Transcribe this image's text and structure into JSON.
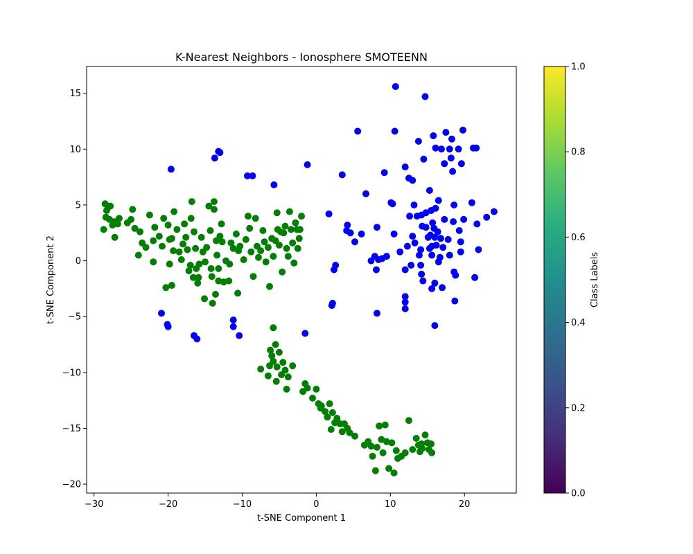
{
  "chart_data": {
    "type": "scatter",
    "title": "K-Nearest Neighbors - Ionosphere SMOTEENN",
    "xlabel": "t-SNE Component 1",
    "ylabel": "t-SNE Component 2",
    "xlim": [
      -31,
      27
    ],
    "ylim": [
      -20.8,
      17.4
    ],
    "xticks": [
      -30,
      -20,
      -10,
      0,
      10,
      20
    ],
    "xtick_labels": [
      "−30",
      "−20",
      "−10",
      "0",
      "10",
      "20"
    ],
    "yticks": [
      -20,
      -15,
      -10,
      -5,
      0,
      5,
      10,
      15
    ],
    "ytick_labels": [
      "−20",
      "−15",
      "−10",
      "−5",
      "0",
      "5",
      "10",
      "15"
    ],
    "grid": false,
    "colorbar": {
      "label": "Class Labels",
      "colormap": "viridis",
      "range": [
        0.0,
        1.0
      ],
      "ticks": [
        0.0,
        0.2,
        0.4,
        0.6,
        0.8,
        1.0
      ],
      "tick_labels": [
        "0.0",
        "0.2",
        "0.4",
        "0.6",
        "0.8",
        "1.0"
      ]
    },
    "series": [
      {
        "color": "#008000",
        "points": [
          [
            -28.5,
            5.1
          ],
          [
            -28.1,
            4.8
          ],
          [
            -27.8,
            4.9
          ],
          [
            -28.3,
            4.5
          ],
          [
            -28.4,
            3.9
          ],
          [
            -27.9,
            3.7
          ],
          [
            -27.5,
            3.2
          ],
          [
            -27.2,
            3.5
          ],
          [
            -26.8,
            3.3
          ],
          [
            -26.6,
            3.8
          ],
          [
            -27.2,
            2.1
          ],
          [
            -28.7,
            2.8
          ],
          [
            -25.5,
            3.4
          ],
          [
            -25.0,
            3.7
          ],
          [
            -24.8,
            4.6
          ],
          [
            -24.5,
            2.9
          ],
          [
            -23.8,
            2.6
          ],
          [
            -23.5,
            1.6
          ],
          [
            -24.0,
            0.5
          ],
          [
            -23.0,
            1.2
          ],
          [
            -22.5,
            4.1
          ],
          [
            -22.0,
            1.8
          ],
          [
            -22.0,
            -0.1
          ],
          [
            -21.8,
            3.0
          ],
          [
            -21.2,
            2.2
          ],
          [
            -20.8,
            1.3
          ],
          [
            -20.6,
            3.8
          ],
          [
            -20.3,
            -2.4
          ],
          [
            -20.0,
            3.2
          ],
          [
            -19.8,
            1.9
          ],
          [
            -19.5,
            2.0
          ],
          [
            -19.3,
            0.9
          ],
          [
            -19.5,
            -2.2
          ],
          [
            -19.8,
            -0.3
          ],
          [
            -19.2,
            4.4
          ],
          [
            -18.8,
            2.8
          ],
          [
            -18.5,
            0.8
          ],
          [
            -18.2,
            0.1
          ],
          [
            -18.0,
            1.5
          ],
          [
            -17.8,
            3.3
          ],
          [
            -17.6,
            2.1
          ],
          [
            -17.4,
            1.0
          ],
          [
            -17.2,
            -0.9
          ],
          [
            -17.0,
            -0.4
          ],
          [
            -16.8,
            5.3
          ],
          [
            -16.9,
            3.8
          ],
          [
            -16.6,
            -1.5
          ],
          [
            -16.5,
            2.6
          ],
          [
            -16.3,
            1.1
          ],
          [
            -16.2,
            -0.7
          ],
          [
            -16.0,
            -2.0
          ],
          [
            -15.8,
            -0.3
          ],
          [
            -15.5,
            2.1
          ],
          [
            -15.3,
            0.8
          ],
          [
            -15.1,
            -3.4
          ],
          [
            -15.0,
            -0.1
          ],
          [
            -14.8,
            1.2
          ],
          [
            -14.5,
            4.9
          ],
          [
            -14.3,
            2.7
          ],
          [
            -14.2,
            -0.7
          ],
          [
            -14.1,
            -1.4
          ],
          [
            -14.0,
            -3.8
          ],
          [
            -13.8,
            5.3
          ],
          [
            -13.8,
            4.6
          ],
          [
            -13.6,
            -3.0
          ],
          [
            -13.5,
            1.8
          ],
          [
            -13.4,
            0.5
          ],
          [
            -13.2,
            -0.7
          ],
          [
            -13.0,
            2.2
          ],
          [
            -12.8,
            3.3
          ],
          [
            -12.7,
            1.7
          ],
          [
            -12.5,
            -1.9
          ],
          [
            -12.2,
            0.0
          ],
          [
            -11.8,
            -1.8
          ],
          [
            -11.7,
            -0.3
          ],
          [
            -11.5,
            1.6
          ],
          [
            -11.2,
            1.1
          ],
          [
            -10.8,
            2.4
          ],
          [
            -10.5,
            0.9
          ],
          [
            -10.3,
            1.3
          ],
          [
            -10.6,
            -2.9
          ],
          [
            -9.8,
            0.1
          ],
          [
            -9.5,
            1.9
          ],
          [
            -9.2,
            4.0
          ],
          [
            -9.0,
            2.9
          ],
          [
            -8.8,
            0.8
          ],
          [
            -8.5,
            -1.4
          ],
          [
            -8.2,
            3.8
          ],
          [
            -8.0,
            1.3
          ],
          [
            -7.8,
            0.3
          ],
          [
            -7.5,
            0.9
          ],
          [
            -7.2,
            2.7
          ],
          [
            -7.0,
            1.7
          ],
          [
            -6.8,
            -0.1
          ],
          [
            -6.5,
            1.2
          ],
          [
            -6.3,
            -2.3
          ],
          [
            -6.0,
            2.0
          ],
          [
            -5.8,
            0.4
          ],
          [
            -5.5,
            1.8
          ],
          [
            -5.3,
            4.3
          ],
          [
            -5.2,
            2.8
          ],
          [
            -5.0,
            1.4
          ],
          [
            -4.8,
            2.6
          ],
          [
            -4.6,
            -1.0
          ],
          [
            -4.4,
            2.5
          ],
          [
            -4.2,
            3.1
          ],
          [
            -4.0,
            1.1
          ],
          [
            -3.8,
            0.4
          ],
          [
            -3.6,
            4.4
          ],
          [
            -3.4,
            2.8
          ],
          [
            -3.2,
            1.6
          ],
          [
            -3.0,
            -0.2
          ],
          [
            -2.8,
            3.4
          ],
          [
            -2.6,
            2.8
          ],
          [
            -2.5,
            1.1
          ],
          [
            -2.3,
            2.0
          ],
          [
            -2.2,
            2.8
          ],
          [
            -2.0,
            4.0
          ],
          [
            -13.2,
            -1.8
          ],
          [
            -15.9,
            -1.5
          ],
          [
            -6.2,
            -8.0
          ],
          [
            -6.0,
            -8.5
          ],
          [
            -5.8,
            -6.0
          ],
          [
            -5.5,
            -7.5
          ],
          [
            -5.8,
            -9.0
          ],
          [
            -5.3,
            -9.5
          ],
          [
            -5.0,
            -8.2
          ],
          [
            -4.7,
            -10.2
          ],
          [
            -4.5,
            -9.1
          ],
          [
            -4.2,
            -9.8
          ],
          [
            -4.0,
            -11.5
          ],
          [
            -3.8,
            -10.4
          ],
          [
            -3.2,
            -9.4
          ],
          [
            -6.5,
            -10.3
          ],
          [
            -7.5,
            -9.7
          ],
          [
            -5.4,
            -10.8
          ],
          [
            -6.3,
            -9.4
          ],
          [
            -1.5,
            -11.0
          ],
          [
            -1.2,
            -11.4
          ],
          [
            -1.8,
            -11.7
          ],
          [
            -0.5,
            -12.3
          ],
          [
            0.0,
            -11.5
          ],
          [
            0.3,
            -12.8
          ],
          [
            0.7,
            -13.0
          ],
          [
            1.2,
            -13.5
          ],
          [
            1.5,
            -14.0
          ],
          [
            1.8,
            -12.8
          ],
          [
            2.2,
            -13.6
          ],
          [
            2.5,
            -14.5
          ],
          [
            2.8,
            -14.1
          ],
          [
            3.2,
            -14.6
          ],
          [
            3.5,
            -15.3
          ],
          [
            3.8,
            -14.6
          ],
          [
            4.2,
            -15.0
          ],
          [
            4.5,
            -15.4
          ],
          [
            5.2,
            -15.7
          ],
          [
            6.5,
            -16.5
          ],
          [
            7.0,
            -16.2
          ],
          [
            7.4,
            -16.6
          ],
          [
            7.6,
            -17.5
          ],
          [
            8.0,
            -18.8
          ],
          [
            8.2,
            -16.7
          ],
          [
            8.5,
            -14.8
          ],
          [
            8.8,
            -16.0
          ],
          [
            9.0,
            -17.2
          ],
          [
            9.3,
            -14.7
          ],
          [
            9.5,
            -16.2
          ],
          [
            9.8,
            -18.6
          ],
          [
            10.2,
            -16.3
          ],
          [
            10.5,
            -19.0
          ],
          [
            10.8,
            -17.0
          ],
          [
            11.0,
            -17.7
          ],
          [
            11.5,
            -17.5
          ],
          [
            12.0,
            -17.2
          ],
          [
            12.5,
            -14.3
          ],
          [
            13.0,
            -16.9
          ],
          [
            13.5,
            -15.9
          ],
          [
            13.8,
            -16.5
          ],
          [
            14.0,
            -17.1
          ],
          [
            14.3,
            -16.8
          ],
          [
            14.7,
            -15.6
          ],
          [
            15.0,
            -16.3
          ],
          [
            15.2,
            -16.9
          ],
          [
            15.5,
            -16.4
          ],
          [
            15.6,
            -17.2
          ],
          [
            14.2,
            -16.4
          ],
          [
            0.6,
            -13.2
          ],
          [
            2.0,
            -15.1
          ]
        ]
      },
      {
        "color": "#0000ff",
        "points": [
          [
            10.7,
            15.6
          ],
          [
            14.7,
            14.7
          ],
          [
            5.6,
            11.6
          ],
          [
            10.6,
            11.6
          ],
          [
            13.8,
            10.7
          ],
          [
            15.8,
            11.2
          ],
          [
            17.5,
            11.5
          ],
          [
            18.3,
            10.9
          ],
          [
            19.8,
            11.7
          ],
          [
            16.1,
            10.1
          ],
          [
            16.9,
            10.0
          ],
          [
            18.0,
            10.0
          ],
          [
            19.2,
            10.0
          ],
          [
            21.2,
            10.1
          ],
          [
            21.6,
            10.1
          ],
          [
            14.5,
            9.1
          ],
          [
            18.2,
            9.2
          ],
          [
            19.6,
            8.7
          ],
          [
            17.3,
            8.7
          ],
          [
            18.4,
            8.0
          ],
          [
            12.0,
            8.4
          ],
          [
            9.2,
            7.9
          ],
          [
            12.5,
            7.4
          ],
          [
            13.0,
            7.2
          ],
          [
            15.3,
            6.3
          ],
          [
            6.7,
            6.0
          ],
          [
            10.1,
            5.2
          ],
          [
            10.3,
            5.1
          ],
          [
            13.2,
            5.0
          ],
          [
            16.5,
            5.4
          ],
          [
            15.5,
            4.5
          ],
          [
            16.1,
            4.7
          ],
          [
            18.6,
            5.0
          ],
          [
            21.0,
            5.2
          ],
          [
            24.0,
            4.4
          ],
          [
            23.0,
            3.9
          ],
          [
            21.7,
            3.3
          ],
          [
            19.9,
            3.7
          ],
          [
            18.5,
            3.5
          ],
          [
            17.3,
            3.7
          ],
          [
            15.7,
            3.4
          ],
          [
            14.8,
            4.3
          ],
          [
            14.2,
            4.1
          ],
          [
            13.6,
            4.0
          ],
          [
            12.6,
            4.0
          ],
          [
            14.3,
            3.1
          ],
          [
            14.8,
            3.0
          ],
          [
            15.9,
            2.9
          ],
          [
            16.4,
            2.6
          ],
          [
            15.4,
            2.3
          ],
          [
            15.1,
            2.1
          ],
          [
            16.0,
            2.1
          ],
          [
            16.8,
            2.0
          ],
          [
            17.8,
            1.9
          ],
          [
            19.3,
            2.7
          ],
          [
            19.5,
            1.7
          ],
          [
            16.2,
            1.4
          ],
          [
            15.6,
            1.3
          ],
          [
            15.3,
            1.1
          ],
          [
            14.1,
            1.0
          ],
          [
            12.3,
            1.3
          ],
          [
            11.3,
            0.8
          ],
          [
            10.5,
            2.4
          ],
          [
            13.3,
            1.6
          ],
          [
            13.0,
            2.2
          ],
          [
            17.1,
            1.2
          ],
          [
            18.0,
            0.5
          ],
          [
            19.5,
            0.8
          ],
          [
            21.9,
            1.0
          ],
          [
            16.7,
            0.3
          ],
          [
            16.5,
            -0.1
          ],
          [
            15.6,
            0.5
          ],
          [
            13.9,
            0.5
          ],
          [
            12.8,
            -0.4
          ],
          [
            12.0,
            -0.8
          ],
          [
            9.5,
            0.4
          ],
          [
            8.9,
            0.2
          ],
          [
            8.4,
            0.1
          ],
          [
            7.9,
            0.4
          ],
          [
            7.4,
            0.0
          ],
          [
            8.1,
            -0.8
          ],
          [
            14.1,
            -0.4
          ],
          [
            14.2,
            -1.2
          ],
          [
            14.4,
            -1.8
          ],
          [
            15.6,
            -2.5
          ],
          [
            16.0,
            -2.0
          ],
          [
            17.0,
            -2.4
          ],
          [
            18.6,
            -1.0
          ],
          [
            18.8,
            -1.3
          ],
          [
            21.4,
            -1.5
          ],
          [
            8.2,
            3.0
          ],
          [
            6.1,
            2.4
          ],
          [
            5.2,
            1.7
          ],
          [
            4.6,
            2.5
          ],
          [
            4.2,
            3.2
          ],
          [
            4.1,
            2.7
          ],
          [
            2.6,
            -0.4
          ],
          [
            2.4,
            -0.8
          ],
          [
            2.2,
            -3.8
          ],
          [
            2.1,
            -4.0
          ],
          [
            1.7,
            4.2
          ],
          [
            3.5,
            7.7
          ],
          [
            -1.2,
            8.6
          ],
          [
            -5.7,
            6.8
          ],
          [
            -8.6,
            7.6
          ],
          [
            -9.3,
            7.6
          ],
          [
            -13.0,
            9.7
          ],
          [
            -13.2,
            9.8
          ],
          [
            -13.7,
            9.2
          ],
          [
            -19.6,
            8.2
          ],
          [
            -20.9,
            -4.7
          ],
          [
            -20.1,
            -5.7
          ],
          [
            -20.0,
            -5.9
          ],
          [
            -16.5,
            -6.7
          ],
          [
            -16.1,
            -7.0
          ],
          [
            -11.2,
            -5.3
          ],
          [
            -11.2,
            -5.9
          ],
          [
            -10.4,
            -6.7
          ],
          [
            -1.5,
            -6.5
          ],
          [
            8.2,
            -4.7
          ],
          [
            12.0,
            -3.2
          ],
          [
            12.0,
            -3.7
          ],
          [
            12.0,
            -4.3
          ],
          [
            16.0,
            -5.8
          ],
          [
            18.7,
            -3.6
          ]
        ]
      }
    ]
  }
}
